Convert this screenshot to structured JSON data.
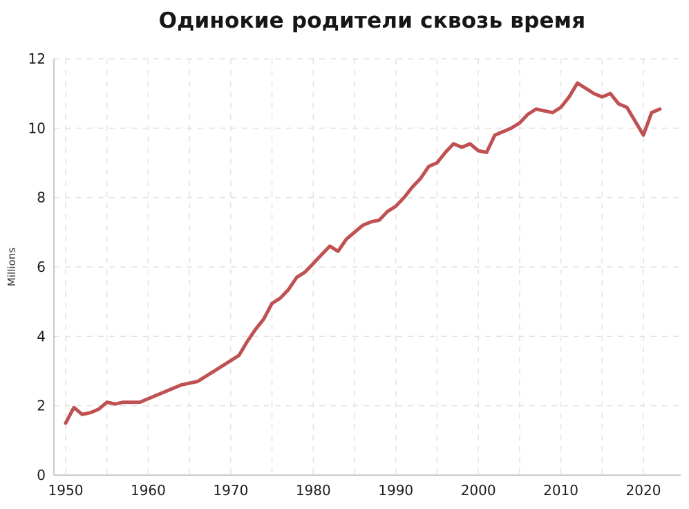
{
  "chart_data": {
    "type": "line",
    "title": "Одинокие родители сквозь время",
    "xlabel": "",
    "ylabel": "Millions",
    "xlim": [
      1950,
      2022.5
    ],
    "ylim": [
      0,
      12
    ],
    "grid": true,
    "grid_style": "dashed",
    "grid_x_step_years": 5,
    "legend": "none",
    "line_color": "#c05152",
    "grid_color": "#e7e1e1",
    "axis_color": "#bdb6b6",
    "xticks": [
      1950,
      1960,
      1970,
      1980,
      1990,
      2000,
      2010,
      2020
    ],
    "xtick_labels": [
      "1950",
      "1960",
      "1970",
      "1980",
      "1990",
      "2000",
      "2010",
      "2020"
    ],
    "yticks": [
      0,
      2,
      4,
      6,
      8,
      10,
      12
    ],
    "ytick_labels": [
      "0",
      "2",
      "4",
      "6",
      "8",
      "10",
      "12"
    ],
    "years": [
      1950,
      1951,
      1952,
      1953,
      1954,
      1955,
      1956,
      1957,
      1958,
      1959,
      1960,
      1961,
      1962,
      1963,
      1964,
      1965,
      1966,
      1967,
      1968,
      1969,
      1970,
      1971,
      1972,
      1973,
      1974,
      1975,
      1976,
      1977,
      1978,
      1979,
      1980,
      1981,
      1982,
      1983,
      1984,
      1985,
      1986,
      1987,
      1988,
      1989,
      1990,
      1991,
      1992,
      1993,
      1994,
      1995,
      1996,
      1997,
      1998,
      1999,
      2000,
      2001,
      2002,
      2003,
      2004,
      2005,
      2006,
      2007,
      2008,
      2009,
      2010,
      2011,
      2012,
      2013,
      2014,
      2015,
      2016,
      2017,
      2018,
      2019,
      2020,
      2021,
      2022
    ],
    "values": [
      1.5,
      1.95,
      1.75,
      1.8,
      1.9,
      2.1,
      2.05,
      2.1,
      2.1,
      2.1,
      2.2,
      2.3,
      2.4,
      2.5,
      2.6,
      2.65,
      2.7,
      2.85,
      3.0,
      3.15,
      3.3,
      3.45,
      3.85,
      4.2,
      4.5,
      4.95,
      5.1,
      5.35,
      5.7,
      5.85,
      6.1,
      6.35,
      6.6,
      6.45,
      6.8,
      7.0,
      7.2,
      7.3,
      7.35,
      7.6,
      7.75,
      8.0,
      8.3,
      8.55,
      8.9,
      9.0,
      9.3,
      9.55,
      9.45,
      9.55,
      9.35,
      9.3,
      9.8,
      9.9,
      10.0,
      10.15,
      10.4,
      10.55,
      10.5,
      10.45,
      10.6,
      10.9,
      11.3,
      11.15,
      11.0,
      10.9,
      11.0,
      10.7,
      10.6,
      10.2,
      9.8,
      10.45,
      10.55
    ]
  }
}
